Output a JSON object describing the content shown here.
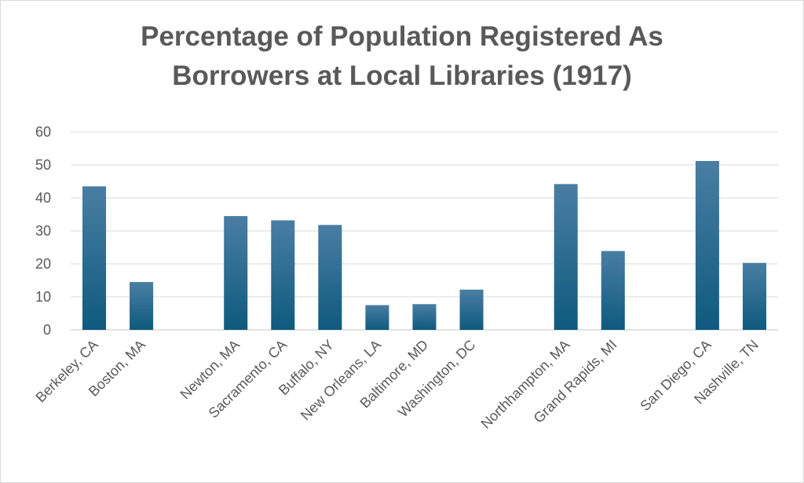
{
  "chart_data": {
    "type": "bar",
    "title_line1": "Percentage of Population Registered As",
    "title_line2": "Borrowers at Local Libraries (1917)",
    "xlabel": "",
    "ylabel": "",
    "ylim": [
      0,
      60
    ],
    "yticks": [
      0,
      10,
      20,
      30,
      40,
      50,
      60
    ],
    "grid": true,
    "legend": "none",
    "categories": [
      "Berkeley, CA",
      "Boston, MA",
      "",
      "Newton, MA",
      "Sacramento, CA",
      "Buffalo, NY",
      "New Orleans, LA",
      "Baltimore, MD",
      "Washington, DC",
      "",
      "Northhampton, MA",
      "Grand Rapids, MI",
      "",
      "San Diego, CA",
      "Nashville, TN"
    ],
    "values": [
      43.5,
      14.5,
      null,
      34.5,
      33.2,
      31.8,
      7.5,
      7.8,
      12.2,
      null,
      44.2,
      23.9,
      null,
      51.2,
      20.3
    ],
    "bar_color_top": "#4a7ea3",
    "bar_color_bottom": "#0e5a7e",
    "grid_color": "#d9d9d9",
    "text_color": "#595959"
  }
}
